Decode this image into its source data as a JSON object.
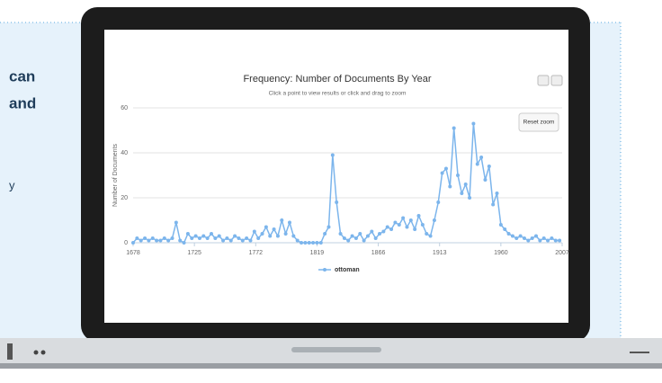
{
  "side_text": [
    "can",
    "and",
    "y"
  ],
  "chart_data": {
    "type": "line",
    "title": "Frequency: Number of Documents By Year",
    "subtitle": "Click a point to view results or click and drag to zoom",
    "y_label": "Number of Documents",
    "reset_button": "Reset zoom",
    "x": [
      1678,
      1681,
      1684,
      1687,
      1690,
      1693,
      1696,
      1699,
      1702,
      1705,
      1708,
      1711,
      1714,
      1717,
      1720,
      1723,
      1726,
      1729,
      1732,
      1735,
      1738,
      1741,
      1744,
      1747,
      1750,
      1753,
      1756,
      1759,
      1762,
      1765,
      1768,
      1771,
      1774,
      1777,
      1780,
      1783,
      1786,
      1789,
      1792,
      1795,
      1798,
      1801,
      1804,
      1807,
      1810,
      1813,
      1816,
      1819,
      1822,
      1825,
      1828,
      1831,
      1834,
      1837,
      1840,
      1843,
      1846,
      1849,
      1852,
      1855,
      1858,
      1861,
      1864,
      1867,
      1870,
      1873,
      1876,
      1879,
      1882,
      1885,
      1888,
      1891,
      1894,
      1897,
      1900,
      1903,
      1906,
      1909,
      1912,
      1915,
      1918,
      1921,
      1924,
      1927,
      1930,
      1933,
      1936,
      1939,
      1942,
      1945,
      1948,
      1951,
      1954,
      1957,
      1960,
      1963,
      1966,
      1969,
      1972,
      1975,
      1978,
      1981,
      1984,
      1987,
      1990,
      1993,
      1996,
      1999,
      2002,
      2005
    ],
    "series": [
      {
        "name": "ottoman",
        "color": "#7cb5ec",
        "values": [
          0,
          2,
          1,
          2,
          1,
          2,
          1,
          1,
          2,
          1,
          2,
          9,
          1,
          0,
          4,
          2,
          3,
          2,
          3,
          2,
          4,
          2,
          3,
          1,
          2,
          1,
          3,
          2,
          1,
          2,
          1,
          5,
          2,
          4,
          7,
          3,
          6,
          3,
          10,
          4,
          9,
          3,
          1,
          0,
          0,
          0,
          0,
          0,
          0,
          4,
          7,
          39,
          18,
          4,
          2,
          1,
          3,
          2,
          4,
          1,
          3,
          5,
          2,
          4,
          5,
          7,
          6,
          9,
          8,
          11,
          7,
          10,
          6,
          12,
          8,
          4,
          3,
          10,
          18,
          31,
          33,
          25,
          51,
          30,
          22,
          26,
          20,
          53,
          35,
          38,
          28,
          34,
          17,
          22,
          8,
          6,
          4,
          3,
          2,
          3,
          2,
          1,
          2,
          3,
          1,
          2,
          1,
          2,
          1,
          1
        ]
      }
    ],
    "xlim": [
      1678,
      2007
    ],
    "xticks": [
      1678,
      1725,
      1772,
      1819,
      1866,
      1913,
      1960,
      2007
    ],
    "ylim": [
      0,
      60
    ],
    "yticks": [
      0,
      20,
      40,
      60
    ],
    "grid": true
  }
}
